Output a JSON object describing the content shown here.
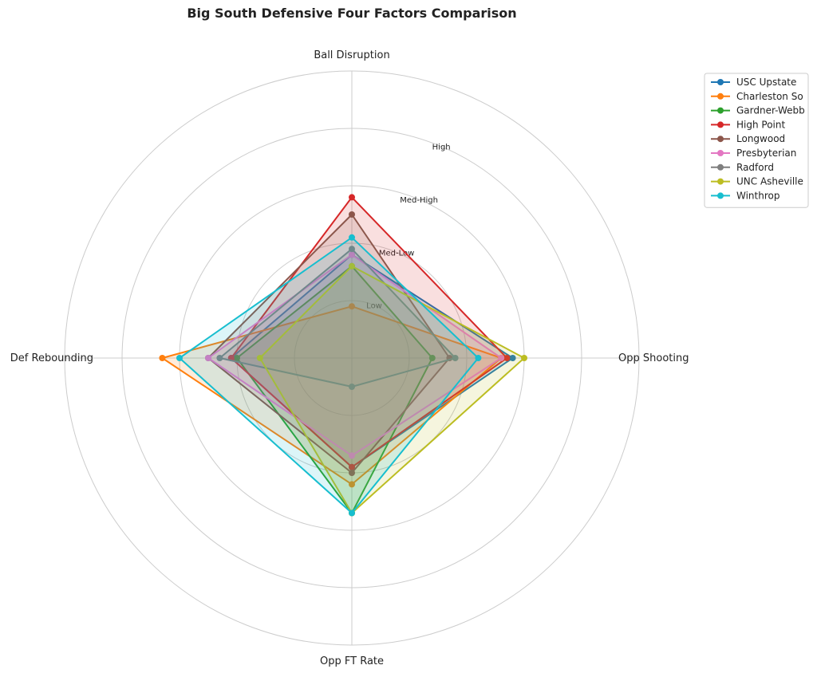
{
  "chart_data": {
    "type": "radar",
    "title": "Big South Defensive Four Factors Comparison",
    "axes": [
      "Ball Disruption",
      "Opp Shooting",
      "Opp FT Rate",
      "Def Rebounding"
    ],
    "rlim": [
      0,
      5
    ],
    "grid": true,
    "ring_labels": [
      {
        "value": 1,
        "label": "Low"
      },
      {
        "value": 2,
        "label": "Med-Low"
      },
      {
        "value": 3,
        "label": "Med-High"
      },
      {
        "value": 4,
        "label": "High"
      }
    ],
    "legend_position": "top-right",
    "series": [
      {
        "name": "USC Upstate",
        "color": "#1f77b4",
        "values": [
          1.8,
          2.8,
          1.9,
          2.1
        ]
      },
      {
        "name": "Charleston So",
        "color": "#ff7f0e",
        "values": [
          0.9,
          2.6,
          2.2,
          3.3
        ]
      },
      {
        "name": "Gardner-Webb",
        "color": "#2ca02c",
        "values": [
          1.6,
          1.4,
          2.7,
          2.0
        ]
      },
      {
        "name": "High Point",
        "color": "#d62728",
        "values": [
          2.8,
          2.7,
          1.9,
          2.1
        ]
      },
      {
        "name": "Longwood",
        "color": "#8c564b",
        "values": [
          2.5,
          1.7,
          2.0,
          2.5
        ]
      },
      {
        "name": "Presbyterian",
        "color": "#e377c2",
        "values": [
          1.8,
          2.6,
          1.7,
          2.5
        ]
      },
      {
        "name": "Radford",
        "color": "#7f7f7f",
        "values": [
          1.9,
          1.8,
          0.5,
          2.3
        ]
      },
      {
        "name": "UNC Asheville",
        "color": "#bcbd22",
        "values": [
          1.6,
          3.0,
          2.7,
          1.6
        ]
      },
      {
        "name": "Winthrop",
        "color": "#17becf",
        "values": [
          2.1,
          2.2,
          2.7,
          3.0
        ]
      }
    ]
  }
}
